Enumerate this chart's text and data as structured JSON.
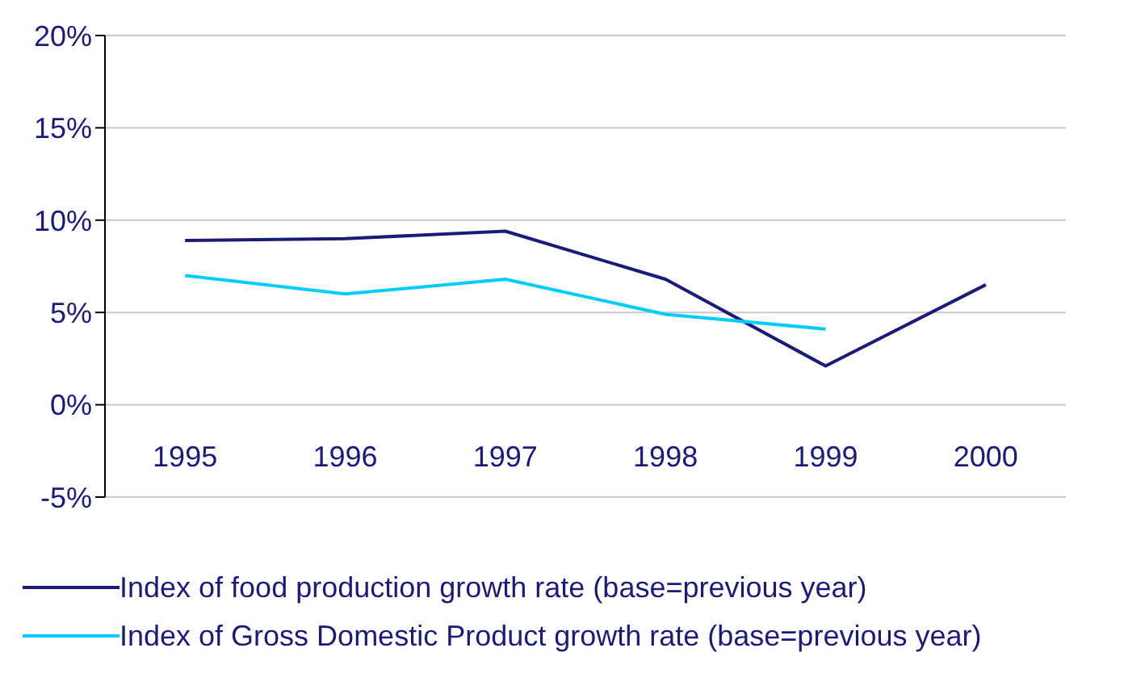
{
  "chart_data": {
    "type": "line",
    "categories": [
      "1995",
      "1996",
      "1997",
      "1998",
      "1999",
      "2000"
    ],
    "series": [
      {
        "name": "Index of food production growth rate (base=previous year)",
        "color": "#1a1a78",
        "values": [
          8.9,
          9.0,
          9.4,
          6.8,
          2.1,
          6.5
        ]
      },
      {
        "name": "Index of Gross Domestic Product growth rate (base=previous year)",
        "color": "#00ccff",
        "values": [
          7.0,
          6.0,
          6.8,
          4.9,
          4.1,
          null
        ]
      }
    ],
    "ylim": [
      -5,
      20
    ],
    "yticks": [
      {
        "value": -5,
        "label": "-5%"
      },
      {
        "value": 0,
        "label": "0%"
      },
      {
        "value": 5,
        "label": "5%"
      },
      {
        "value": 10,
        "label": "10%"
      },
      {
        "value": 15,
        "label": "15%"
      },
      {
        "value": 20,
        "label": "20%"
      }
    ],
    "grid": "y",
    "legend": "bottom",
    "marker": "none",
    "line_style": "solid"
  }
}
